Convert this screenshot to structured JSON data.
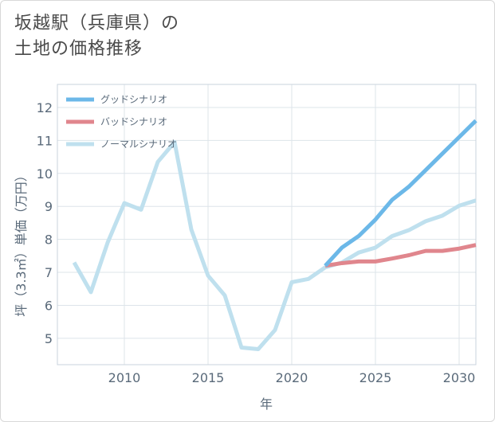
{
  "title_line1": "坂越駅（兵庫県）の",
  "title_line2": "土地の価格推移",
  "chart_data": {
    "type": "line",
    "xlabel": "年",
    "ylabel": "坪（3.3㎡）単価（万円）",
    "xlim": [
      2006,
      2031
    ],
    "ylim": [
      4.2,
      12.7
    ],
    "x_ticks": [
      2010,
      2015,
      2020,
      2025,
      2030
    ],
    "y_ticks": [
      5,
      6,
      7,
      8,
      9,
      10,
      11,
      12
    ],
    "legend_position": "top-left",
    "series": [
      {
        "name": "グッドシナリオ",
        "color": "#6cb8e8",
        "x": [
          2022,
          2023,
          2024,
          2025,
          2026,
          2027,
          2028,
          2029,
          2030,
          2031
        ],
        "values": [
          7.2,
          7.75,
          8.1,
          8.6,
          9.2,
          9.6,
          10.1,
          10.6,
          11.1,
          11.6
        ]
      },
      {
        "name": "バッドシナリオ",
        "color": "#e0868d",
        "x": [
          2022,
          2023,
          2024,
          2025,
          2026,
          2027,
          2028,
          2029,
          2030,
          2031
        ],
        "values": [
          7.2,
          7.28,
          7.33,
          7.33,
          7.42,
          7.52,
          7.65,
          7.65,
          7.72,
          7.83
        ]
      },
      {
        "name": "ノーマルシナリオ",
        "color": "#bfe0ee",
        "x": [
          2007,
          2008,
          2009,
          2010,
          2011,
          2012,
          2013,
          2014,
          2015,
          2016,
          2017,
          2018,
          2019,
          2020,
          2021,
          2022,
          2023,
          2024,
          2025,
          2026,
          2027,
          2028,
          2029,
          2030,
          2031
        ],
        "values": [
          7.3,
          6.4,
          7.9,
          9.1,
          8.9,
          10.35,
          10.95,
          8.3,
          6.9,
          6.3,
          4.72,
          4.67,
          5.25,
          6.7,
          6.8,
          7.15,
          7.3,
          7.6,
          7.75,
          8.1,
          8.28,
          8.55,
          8.72,
          9.02,
          9.18
        ]
      }
    ]
  }
}
